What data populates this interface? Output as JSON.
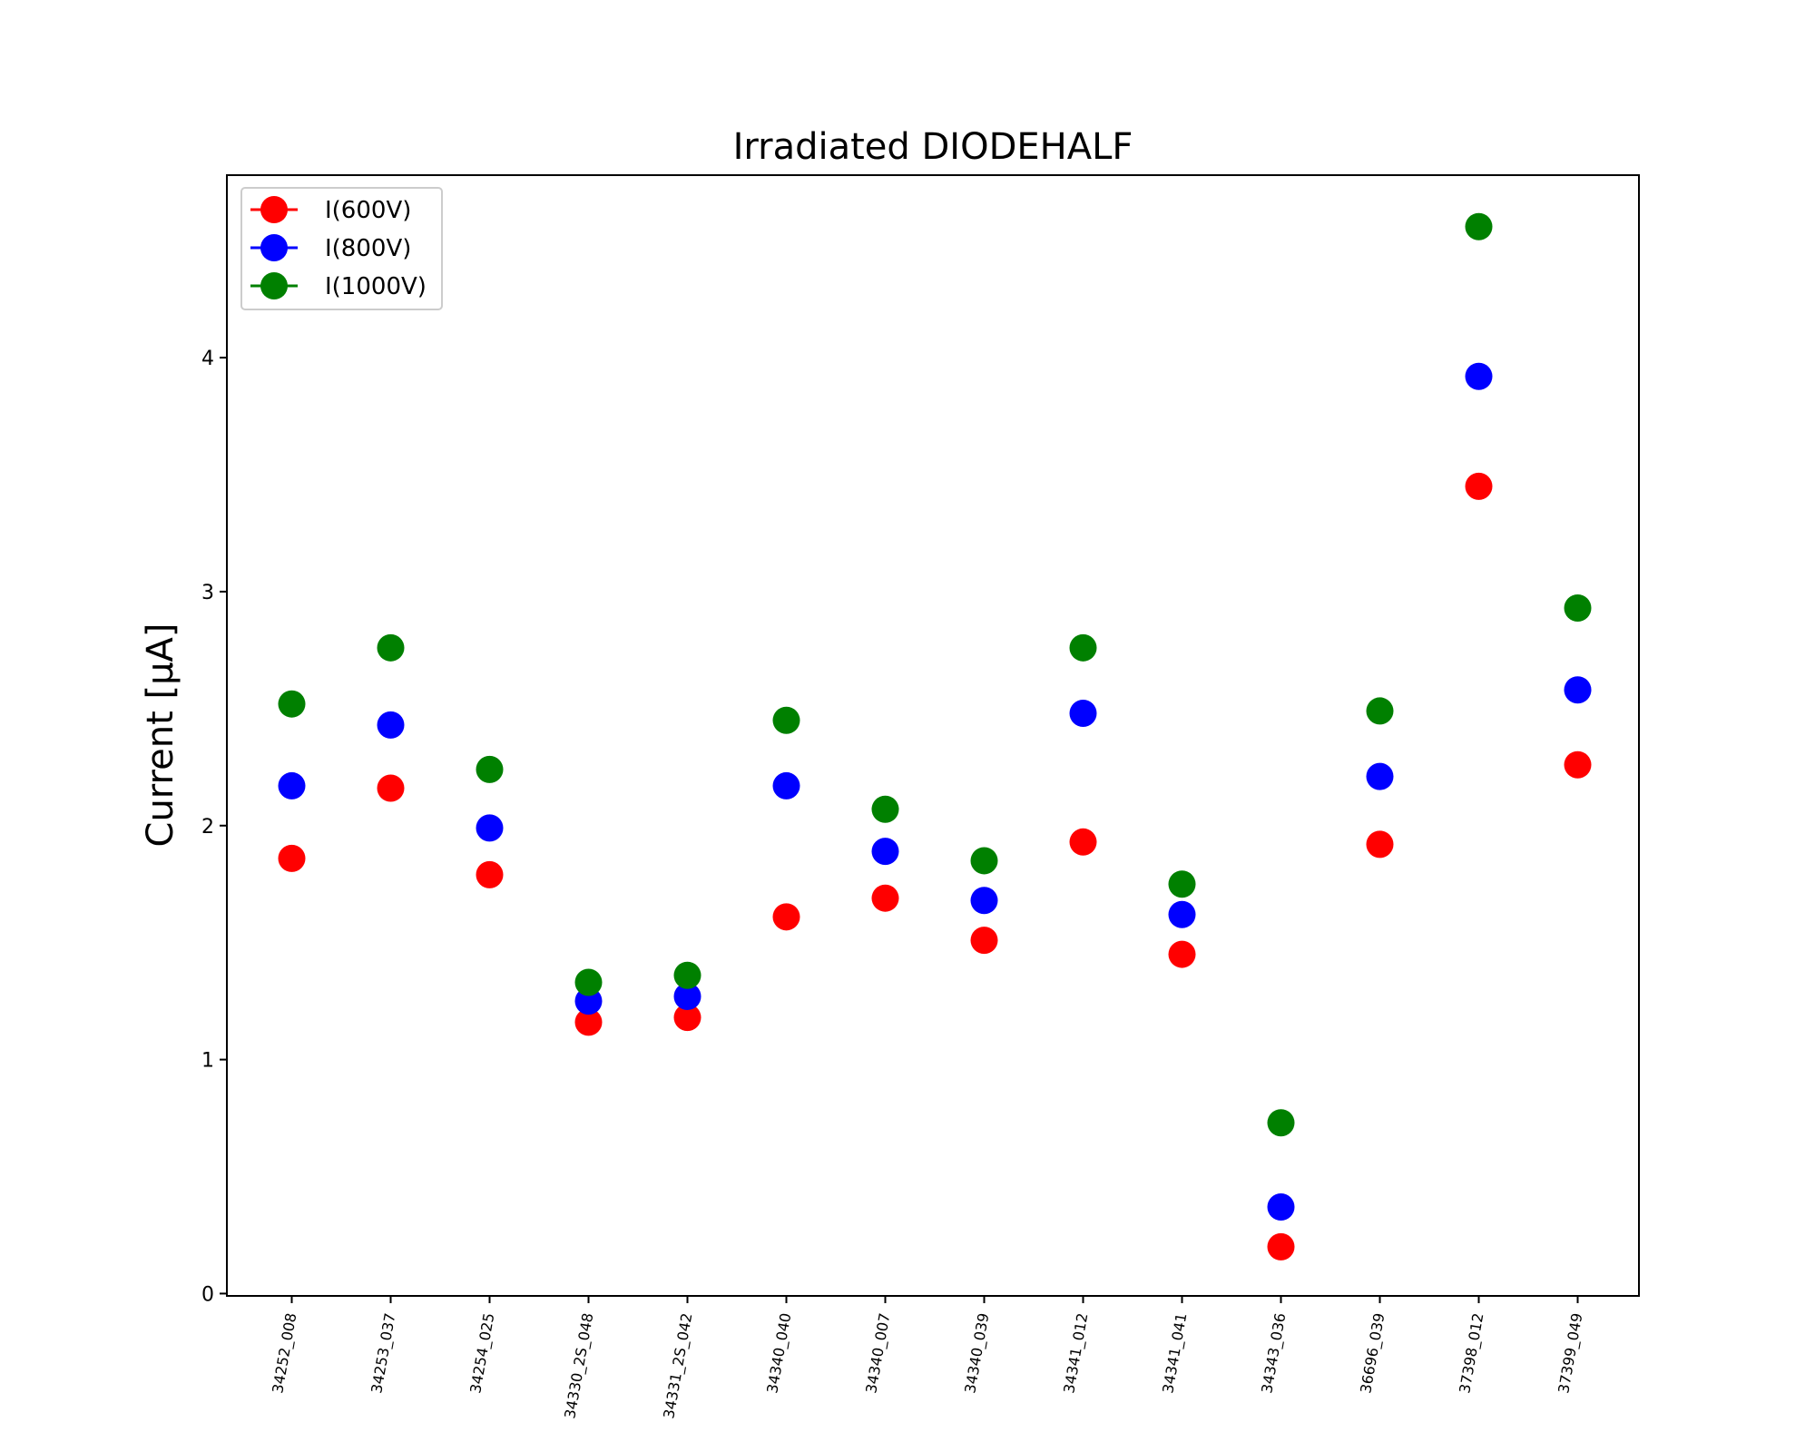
{
  "chart_data": {
    "type": "scatter",
    "title": "Irradiated DIODEHALF",
    "xlabel": "",
    "ylabel": "Current [μA]",
    "ylim": [
      -0.01,
      4.78
    ],
    "yticks": [
      0,
      1,
      2,
      3,
      4
    ],
    "grid": false,
    "legend_position": "top-left",
    "categories": [
      "34252_008",
      "34253_037",
      "34254_025",
      "34330_2S_048",
      "34331_2S_042",
      "34340_040",
      "34340_007",
      "34340_039",
      "34341_012",
      "34341_041",
      "34343_036",
      "36696_039",
      "37398_012",
      "37399_049"
    ],
    "series": [
      {
        "name": "I(600V)",
        "color": "#ff0000",
        "values": [
          1.86,
          2.16,
          1.79,
          1.16,
          1.18,
          1.61,
          1.69,
          1.51,
          1.93,
          1.45,
          0.2,
          1.92,
          3.45,
          2.26
        ]
      },
      {
        "name": "I(800V)",
        "color": "#0000ff",
        "values": [
          2.17,
          2.43,
          1.99,
          1.25,
          1.27,
          2.17,
          1.89,
          1.68,
          2.48,
          1.62,
          0.37,
          2.21,
          3.92,
          2.58
        ]
      },
      {
        "name": "I(1000V)",
        "color": "#008000",
        "values": [
          2.52,
          2.76,
          2.24,
          1.33,
          1.36,
          2.45,
          2.07,
          1.85,
          2.76,
          1.75,
          0.73,
          2.49,
          4.56,
          2.93
        ]
      }
    ]
  }
}
